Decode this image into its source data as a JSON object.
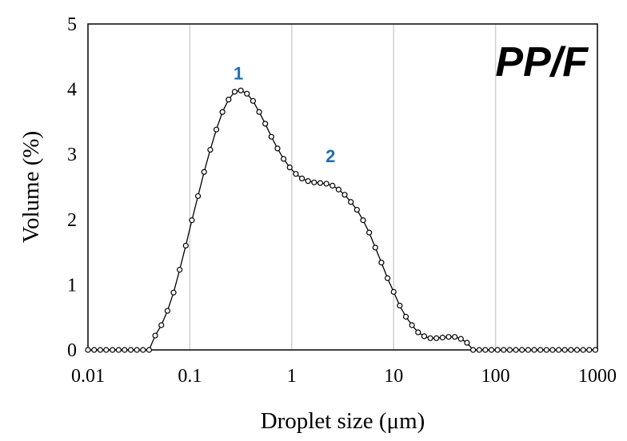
{
  "chart_data": {
    "type": "scatter",
    "xlabel": "Droplet size (μm)",
    "ylabel": "Volume (%)",
    "panel_label": "PP/F",
    "x_scale": "log",
    "xlim": [
      0.01,
      1000
    ],
    "ylim": [
      0,
      5
    ],
    "x_ticks": [
      "0.01",
      "0.1",
      "1",
      "10",
      "100",
      "1000"
    ],
    "x_tick_values": [
      0.01,
      0.1,
      1,
      10,
      100,
      1000
    ],
    "y_ticks": [
      "0",
      "1",
      "2",
      "3",
      "4",
      "5"
    ],
    "y_tick_values": [
      0,
      1,
      2,
      3,
      4,
      5
    ],
    "grid": "vertical",
    "annotations": [
      {
        "text": "1",
        "x": 0.3,
        "y": 4.15,
        "color": "#1f6fb5"
      },
      {
        "text": "2",
        "x": 2.4,
        "y": 2.88,
        "color": "#1f6fb5"
      }
    ],
    "series": [
      {
        "style": "line-with-open-circles",
        "color": "#000000",
        "x": [
          0.01,
          0.0115,
          0.0132,
          0.0151,
          0.0174,
          0.02,
          0.0229,
          0.0263,
          0.0302,
          0.0347,
          0.0398,
          0.0457,
          0.0525,
          0.0603,
          0.0692,
          0.0794,
          0.0912,
          0.1047,
          0.1202,
          0.138,
          0.1585,
          0.182,
          0.2089,
          0.2399,
          0.2754,
          0.3162,
          0.3631,
          0.4169,
          0.4786,
          0.5495,
          0.631,
          0.7244,
          0.8318,
          0.955,
          1.0965,
          1.2589,
          1.4454,
          1.6596,
          1.9055,
          2.1878,
          2.5119,
          2.884,
          3.3113,
          3.8019,
          4.3652,
          5.0119,
          5.7544,
          6.6069,
          7.5858,
          8.7096,
          10.0,
          11.482,
          13.183,
          15.136,
          17.378,
          19.953,
          22.909,
          26.303,
          30.2,
          34.674,
          39.811,
          45.709,
          52.481,
          60.256,
          69.183,
          79.433,
          91.201,
          104.71,
          120.23,
          138.04,
          158.49,
          181.97,
          208.93,
          239.88,
          275.42,
          316.23,
          363.08,
          416.87,
          478.63,
          549.54,
          630.96,
          724.44,
          831.76,
          954.99
        ],
        "y": [
          0,
          0,
          0,
          0,
          0,
          0,
          0,
          0,
          0,
          0,
          0,
          0.22,
          0.38,
          0.6,
          0.88,
          1.23,
          1.6,
          1.99,
          2.36,
          2.73,
          3.07,
          3.38,
          3.65,
          3.84,
          3.96,
          3.98,
          3.93,
          3.82,
          3.65,
          3.47,
          3.27,
          3.09,
          2.93,
          2.8,
          2.7,
          2.63,
          2.59,
          2.57,
          2.56,
          2.55,
          2.52,
          2.46,
          2.38,
          2.27,
          2.15,
          1.99,
          1.8,
          1.57,
          1.34,
          1.1,
          0.89,
          0.68,
          0.51,
          0.38,
          0.27,
          0.21,
          0.18,
          0.18,
          0.19,
          0.2,
          0.2,
          0.17,
          0.11,
          0,
          0,
          0,
          0,
          0,
          0,
          0,
          0,
          0,
          0,
          0,
          0,
          0,
          0,
          0,
          0,
          0,
          0,
          0,
          0,
          0
        ]
      }
    ]
  }
}
